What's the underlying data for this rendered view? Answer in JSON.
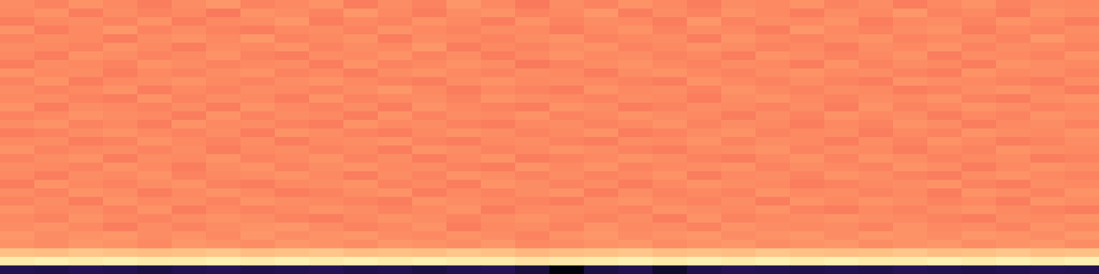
{
  "chart_data": {
    "type": "heatmap",
    "tick_labels": false,
    "zlim": [
      0,
      100
    ],
    "cells": [
      [
        76,
        74,
        77,
        75,
        73,
        76,
        78,
        74,
        75,
        77,
        73,
        76,
        74,
        78,
        75,
        72,
        76,
        74,
        77,
        75,
        73,
        76,
        75,
        77,
        74,
        76,
        73,
        75,
        77,
        74,
        76,
        75
      ],
      [
        75,
        77,
        73,
        76,
        74,
        75,
        72,
        77,
        76,
        74,
        78,
        75,
        73,
        76,
        77,
        74,
        75,
        78,
        73,
        76,
        74,
        77,
        75,
        73,
        76,
        75,
        78,
        74,
        75,
        73,
        77,
        76
      ],
      [
        73,
        75,
        76,
        74,
        77,
        73,
        75,
        76,
        78,
        73,
        75,
        74,
        77,
        75,
        73,
        77,
        74,
        76,
        75,
        73,
        78,
        74,
        76,
        75,
        77,
        73,
        75,
        76,
        74,
        77,
        75,
        73
      ],
      [
        77,
        73,
        75,
        78,
        74,
        76,
        74,
        73,
        75,
        76,
        74,
        77,
        75,
        74,
        76,
        75,
        73,
        75,
        77,
        74,
        76,
        75,
        73,
        78,
        75,
        74,
        76,
        77,
        73,
        75,
        74,
        76
      ],
      [
        74,
        76,
        75,
        73,
        76,
        77,
        75,
        78,
        74,
        75,
        77,
        73,
        76,
        75,
        74,
        76,
        77,
        74,
        75,
        76,
        73,
        77,
        75,
        74,
        76,
        77,
        74,
        75,
        76,
        74,
        78,
        75
      ],
      [
        76,
        75,
        74,
        77,
        75,
        73,
        76,
        75,
        77,
        74,
        76,
        75,
        78,
        73,
        75,
        74,
        76,
        77,
        74,
        75,
        77,
        76,
        74,
        75,
        73,
        76,
        75,
        77,
        74,
        76,
        75,
        74
      ],
      [
        75,
        73,
        77,
        76,
        74,
        75,
        77,
        74,
        73,
        76,
        75,
        77,
        74,
        76,
        73,
        75,
        77,
        75,
        76,
        74,
        75,
        73,
        77,
        76,
        74,
        75,
        77,
        73,
        76,
        75,
        74,
        77
      ],
      [
        73,
        76,
        75,
        74,
        77,
        76,
        74,
        75,
        76,
        73,
        77,
        74,
        75,
        77,
        76,
        72,
        74,
        76,
        77,
        75,
        74,
        76,
        75,
        73,
        77,
        74,
        76,
        75,
        73,
        77,
        76,
        75
      ],
      [
        77,
        75,
        76,
        73,
        75,
        74,
        76,
        77,
        74,
        75,
        73,
        76,
        77,
        75,
        74,
        76,
        75,
        73,
        76,
        77,
        75,
        74,
        76,
        77,
        75,
        76,
        74,
        73,
        77,
        75,
        76,
        74
      ],
      [
        74,
        77,
        73,
        75,
        76,
        77,
        75,
        74,
        76,
        77,
        75,
        74,
        73,
        76,
        77,
        75,
        76,
        75,
        74,
        73,
        77,
        75,
        74,
        76,
        74,
        73,
        77,
        76,
        75,
        74,
        73,
        76
      ],
      [
        76,
        74,
        75,
        77,
        73,
        75,
        74,
        76,
        75,
        74,
        76,
        78,
        75,
        73,
        75,
        74,
        73,
        77,
        75,
        76,
        74,
        77,
        75,
        74,
        76,
        75,
        73,
        74,
        76,
        77,
        75,
        73
      ],
      [
        75,
        76,
        74,
        73,
        77,
        74,
        76,
        75,
        73,
        77,
        74,
        75,
        76,
        74,
        77,
        76,
        75,
        74,
        76,
        75,
        73,
        76,
        77,
        75,
        74,
        76,
        75,
        77,
        74,
        73,
        76,
        77
      ],
      [
        77,
        73,
        76,
        75,
        74,
        76,
        73,
        77,
        75,
        74,
        76,
        73,
        77,
        75,
        74,
        73,
        77,
        76,
        73,
        74,
        76,
        75,
        74,
        76,
        73,
        77,
        74,
        75,
        77,
        76,
        74,
        75
      ],
      [
        74,
        75,
        77,
        76,
        75,
        73,
        77,
        74,
        76,
        75,
        73,
        77,
        74,
        76,
        75,
        77,
        74,
        75,
        77,
        76,
        75,
        73,
        76,
        74,
        77,
        75,
        76,
        73,
        75,
        74,
        77,
        76
      ],
      [
        76,
        77,
        74,
        75,
        73,
        77,
        75,
        76,
        74,
        73,
        77,
        75,
        76,
        74,
        73,
        75,
        76,
        74,
        75,
        77,
        74,
        76,
        75,
        73,
        75,
        74,
        77,
        76,
        73,
        75,
        76,
        74
      ],
      [
        73,
        74,
        76,
        77,
        75,
        74,
        76,
        73,
        77,
        76,
        74,
        73,
        75,
        77,
        76,
        74,
        75,
        77,
        73,
        74,
        76,
        77,
        74,
        75,
        76,
        73,
        75,
        74,
        77,
        76,
        75,
        77
      ],
      [
        75,
        76,
        73,
        74,
        77,
        75,
        74,
        76,
        73,
        75,
        76,
        77,
        74,
        73,
        75,
        76,
        74,
        73,
        76,
        75,
        77,
        74,
        76,
        75,
        73,
        76,
        74,
        77,
        75,
        73,
        74,
        76
      ],
      [
        77,
        74,
        75,
        76,
        74,
        76,
        73,
        75,
        76,
        74,
        75,
        73,
        77,
        76,
        74,
        75,
        77,
        76,
        74,
        73,
        75,
        76,
        77,
        74,
        76,
        75,
        73,
        75,
        74,
        77,
        76,
        75
      ],
      [
        74,
        76,
        77,
        73,
        76,
        75,
        77,
        74,
        75,
        77,
        74,
        76,
        73,
        75,
        77,
        73,
        74,
        75,
        77,
        76,
        74,
        73,
        75,
        77,
        74,
        77,
        76,
        74,
        75,
        76,
        73,
        74
      ],
      [
        76,
        75,
        74,
        77,
        75,
        73,
        76,
        77,
        74,
        76,
        77,
        75,
        76,
        74,
        73,
        77,
        75,
        77,
        74,
        75,
        76,
        77,
        74,
        76,
        75,
        74,
        77,
        76,
        73,
        75,
        77,
        76
      ],
      [
        75,
        73,
        76,
        75,
        77,
        74,
        75,
        76,
        77,
        75,
        73,
        76,
        74,
        77,
        76,
        74,
        76,
        74,
        75,
        77,
        73,
        75,
        76,
        74,
        77,
        76,
        74,
        73,
        76,
        77,
        75,
        74
      ],
      [
        73,
        77,
        75,
        74,
        76,
        77,
        74,
        73,
        75,
        76,
        77,
        74,
        75,
        73,
        77,
        76,
        74,
        76,
        73,
        75,
        77,
        76,
        75,
        73,
        74,
        75,
        76,
        77,
        74,
        73,
        76,
        75
      ],
      [
        76,
        74,
        77,
        76,
        73,
        75,
        77,
        75,
        73,
        74,
        76,
        77,
        73,
        75,
        74,
        76,
        77,
        73,
        76,
        74,
        75,
        74,
        77,
        75,
        76,
        74,
        75,
        73,
        77,
        76,
        74,
        77
      ],
      [
        74,
        76,
        73,
        77,
        75,
        76,
        74,
        77,
        76,
        75,
        74,
        73,
        77,
        76,
        75,
        74,
        73,
        76,
        77,
        75,
        74,
        76,
        73,
        77,
        75,
        77,
        76,
        74,
        75,
        73,
        77,
        76
      ],
      [
        77,
        75,
        76,
        74,
        77,
        73,
        75,
        74,
        75,
        77,
        76,
        74,
        75,
        77,
        73,
        75,
        76,
        75,
        74,
        77,
        76,
        75,
        77,
        74,
        73,
        75,
        74,
        76,
        77,
        75,
        74,
        73
      ],
      [
        75,
        74,
        77,
        75,
        74,
        76,
        77,
        76,
        74,
        73,
        75,
        77,
        76,
        74,
        76,
        77,
        75,
        74,
        76,
        73,
        77,
        74,
        75,
        76,
        77,
        76,
        75,
        74,
        73,
        76,
        75,
        77
      ],
      [
        76,
        77,
        75,
        73,
        76,
        74,
        76,
        77,
        78,
        76,
        74,
        75,
        77,
        73,
        75,
        76,
        74,
        77,
        75,
        76,
        74,
        77,
        76,
        75,
        76,
        74,
        77,
        75,
        76,
        74,
        77,
        75
      ],
      [
        78,
        76,
        77,
        78,
        76,
        77,
        75,
        78,
        76,
        77,
        78,
        76,
        75,
        77,
        76,
        74,
        77,
        78,
        76,
        77,
        78,
        76,
        77,
        78,
        76,
        78,
        77,
        76,
        78,
        77,
        76,
        78
      ],
      [
        77,
        76,
        78,
        77,
        75,
        78,
        77,
        76,
        78,
        77,
        76,
        78,
        77,
        76,
        78,
        75,
        76,
        77,
        78,
        76,
        77,
        78,
        76,
        77,
        78,
        76,
        77,
        78,
        76,
        77,
        78,
        76
      ],
      [
        87,
        86,
        88,
        87,
        86,
        87,
        88,
        86,
        87,
        88,
        86,
        87,
        86,
        88,
        87,
        85,
        86,
        87,
        88,
        86,
        87,
        86,
        88,
        87,
        86,
        87,
        88,
        86,
        87,
        88,
        86,
        87
      ],
      [
        96,
        97,
        96,
        97,
        96,
        96,
        97,
        96,
        97,
        96,
        97,
        96,
        97,
        96,
        96,
        94,
        95,
        96,
        97,
        96,
        97,
        96,
        97,
        96,
        97,
        96,
        96,
        97,
        96,
        97,
        96,
        97
      ],
      [
        14,
        13,
        15,
        14,
        12,
        14,
        15,
        13,
        14,
        15,
        13,
        14,
        12,
        14,
        15,
        11,
        2,
        12,
        14,
        8,
        13,
        15,
        14,
        13,
        14,
        13,
        15,
        14,
        13,
        14,
        15,
        14
      ]
    ]
  }
}
